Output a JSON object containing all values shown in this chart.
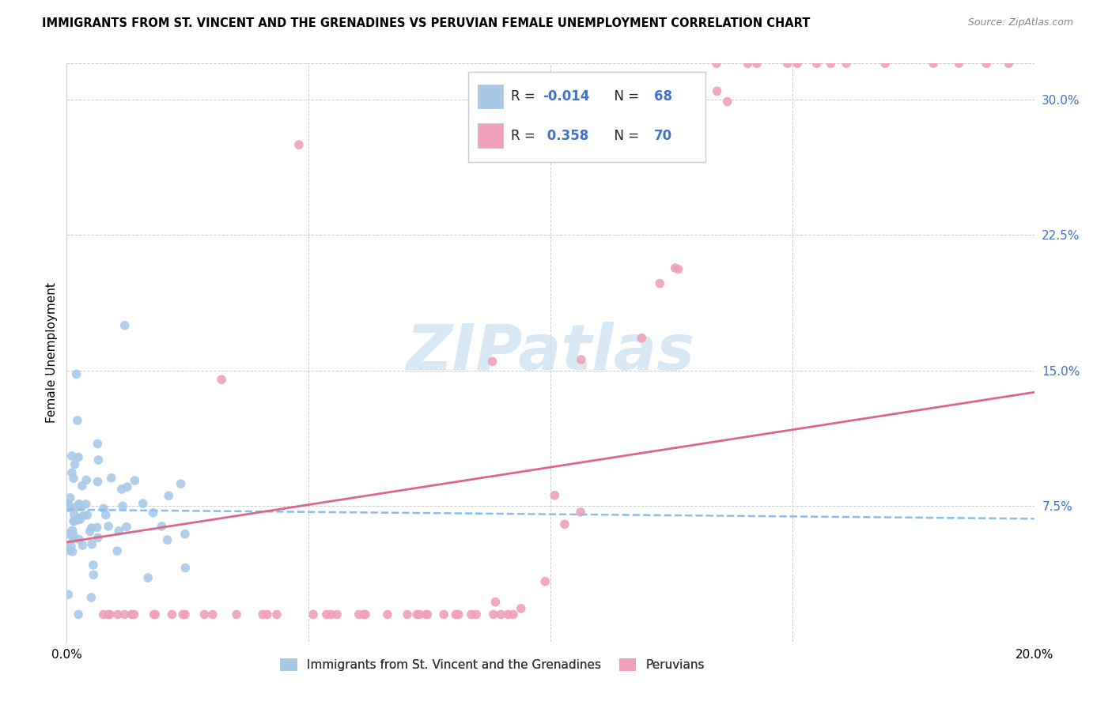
{
  "title": "IMMIGRANTS FROM ST. VINCENT AND THE GRENADINES VS PERUVIAN FEMALE UNEMPLOYMENT CORRELATION CHART",
  "source": "Source: ZipAtlas.com",
  "ylabel": "Female Unemployment",
  "xlim": [
    0.0,
    0.2
  ],
  "ylim": [
    0.0,
    0.32
  ],
  "color_blue": "#a8c8e8",
  "color_pink": "#f0a0b8",
  "color_blue_text": "#4472c4",
  "line_blue_color": "#88bbee",
  "line_pink_color": "#dd6688",
  "watermark_text": "ZIPatlas",
  "watermark_color": "#c8dff0",
  "blue_line_y_start": 0.073,
  "blue_line_y_end": 0.068,
  "pink_line_y_start": 0.055,
  "pink_line_y_end": 0.138,
  "legend_label_blue": "Immigrants from St. Vincent and the Grenadines",
  "legend_label_pink": "Peruvians",
  "background_color": "#ffffff",
  "grid_color": "#cccccc"
}
